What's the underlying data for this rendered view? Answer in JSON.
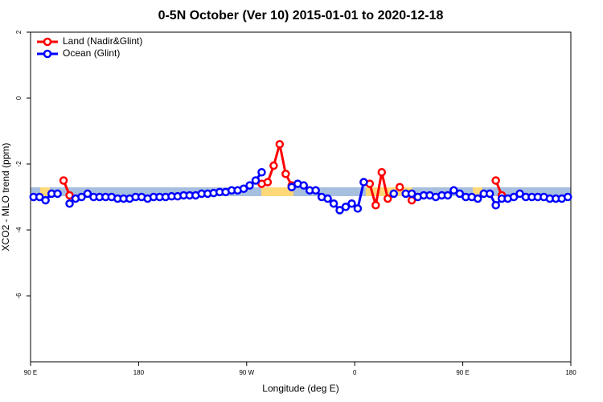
{
  "chart_data": {
    "type": "line",
    "title": "0-5N October (Ver 10)   2015-01-01 to 2020-12-18",
    "xlabel": "Longitude (deg E)",
    "ylabel": "XCO2 - MLO trend (ppm)",
    "x": [
      92.5,
      97.5,
      102.5,
      107.5,
      112.5,
      117.5,
      122.5,
      127.5,
      132.5,
      137.5,
      142.5,
      147.5,
      152.5,
      157.5,
      162.5,
      167.5,
      172.5,
      177.5,
      182.5,
      187.5,
      192.5,
      197.5,
      202.5,
      207.5,
      212.5,
      217.5,
      222.5,
      227.5,
      232.5,
      237.5,
      242.5,
      247.5,
      252.5,
      257.5,
      262.5,
      267.5,
      272.5,
      277.5,
      282.5,
      287.5,
      292.5,
      297.5,
      302.5,
      307.5,
      312.5,
      317.5,
      322.5,
      327.5,
      332.5,
      337.5,
      342.5,
      347.5,
      352.5,
      357.5,
      362.5,
      367.5,
      372.5,
      377.5,
      382.5,
      387.5,
      392.5,
      397.5,
      402.5,
      407.5,
      412.5,
      417.5,
      422.5,
      427.5,
      432.5,
      437.5,
      442.5,
      447.5,
      452.5,
      457.5,
      462.5,
      467.5,
      472.5,
      477.5,
      482.5,
      487.5,
      492.5,
      497.5,
      502.5,
      507.5,
      512.5,
      517.5,
      522.5,
      527.5,
      532.5,
      537.5
    ],
    "series": [
      {
        "name": "Land (Nadir&Glint)",
        "color": "#ff0000",
        "values": [
          null,
          null,
          null,
          null,
          null,
          -2.5,
          -2.95,
          null,
          null,
          null,
          null,
          null,
          null,
          null,
          null,
          null,
          null,
          null,
          null,
          null,
          null,
          null,
          null,
          null,
          null,
          null,
          null,
          null,
          null,
          null,
          null,
          null,
          null,
          null,
          null,
          null,
          null,
          null,
          -2.6,
          -2.55,
          -2.05,
          -1.4,
          -2.3,
          -2.65,
          null,
          null,
          null,
          null,
          null,
          null,
          null,
          null,
          null,
          null,
          null,
          null,
          -2.6,
          -3.25,
          -2.25,
          -3.05,
          null,
          -2.7,
          null,
          -3.1,
          null,
          null,
          null,
          null,
          null,
          null,
          null,
          null,
          null,
          null,
          null,
          null,
          null,
          -2.5,
          -2.95,
          null,
          null,
          null,
          null,
          null,
          null,
          null,
          null,
          null,
          null,
          null
        ]
      },
      {
        "name": "Ocean (Glint)",
        "color": "#0000ff",
        "values": [
          -3.0,
          -3.0,
          -3.1,
          -2.9,
          -2.9,
          null,
          -3.2,
          -3.05,
          -3.0,
          -2.9,
          -3.0,
          -3.0,
          -3.0,
          -3.0,
          -3.05,
          -3.05,
          -3.05,
          -3.0,
          -3.0,
          -3.05,
          -3.0,
          -3.0,
          -3.0,
          -2.98,
          -2.98,
          -2.95,
          -2.95,
          -2.95,
          -2.9,
          -2.9,
          -2.88,
          -2.85,
          -2.85,
          -2.8,
          -2.8,
          -2.75,
          -2.65,
          -2.5,
          -2.25,
          null,
          null,
          null,
          null,
          -2.7,
          -2.6,
          -2.65,
          -2.8,
          -2.8,
          -3.0,
          -3.05,
          -3.2,
          -3.4,
          -3.3,
          -3.2,
          -3.35,
          -2.55,
          null,
          null,
          null,
          null,
          -2.9,
          null,
          -2.9,
          -2.9,
          -3.0,
          -2.95,
          -2.95,
          -3.0,
          -2.95,
          -2.95,
          -2.8,
          -2.9,
          -3.0,
          -3.0,
          -3.05,
          -2.9,
          -2.9,
          -3.25,
          -3.05,
          -3.05,
          -3.0,
          -2.9,
          -3.0,
          -3.0,
          -3.0,
          -3.0,
          -3.05,
          -3.05,
          -3.05,
          -3.0
        ]
      }
    ],
    "xlim": [
      90,
      540
    ],
    "xticks": [
      {
        "value": 90,
        "label": "90 E"
      },
      180,
      {
        "value": 270,
        "label": "90 W"
      },
      {
        "value": 360,
        "label": "0"
      },
      {
        "value": 450,
        "label": "90 E"
      },
      {
        "value": 540,
        "label": "180"
      }
    ],
    "ylim": [
      -8,
      2
    ],
    "yticks": [
      -6,
      -4,
      -2,
      0,
      2
    ],
    "legend": "top-left"
  }
}
